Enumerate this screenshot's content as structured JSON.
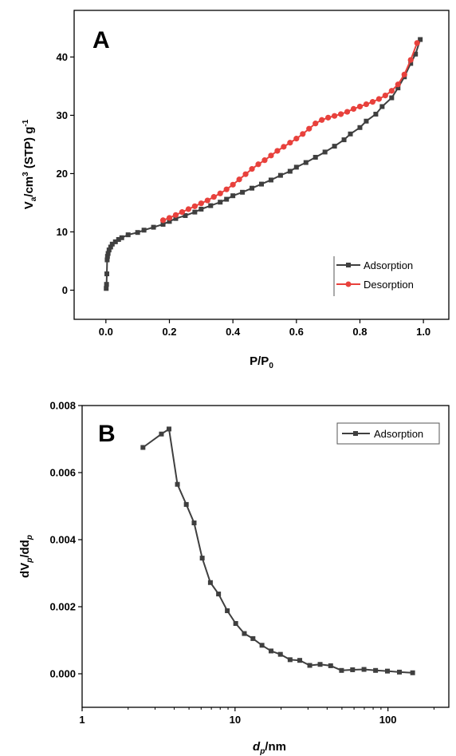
{
  "colors": {
    "adsorption": "#3f3f3f",
    "desorption": "#e8413c",
    "axis": "#000000"
  },
  "chart_data": [
    {
      "type": "line",
      "panel_label": "A",
      "xlabel_main": "P/P",
      "xlabel_sub": "0",
      "ylabel_parts": [
        "V",
        "a",
        "/cm",
        "3",
        " (STP) g",
        "-1"
      ],
      "xlim": [
        -0.1,
        1.08
      ],
      "ylim": [
        -5,
        48
      ],
      "x_ticks": [
        0.0,
        0.2,
        0.4,
        0.6,
        0.8,
        1.0
      ],
      "x_tick_labels": [
        "0.0",
        "0.2",
        "0.4",
        "0.6",
        "0.8",
        "1.0"
      ],
      "y_ticks": [
        0,
        10,
        20,
        30,
        40
      ],
      "y_tick_labels": [
        "0",
        "10",
        "20",
        "30",
        "40"
      ],
      "legend_position": "bottom-right",
      "series": [
        {
          "name": "Adsorption",
          "marker": "square",
          "x": [
            0.001,
            0.002,
            0.003,
            0.004,
            0.005,
            0.007,
            0.01,
            0.015,
            0.02,
            0.03,
            0.04,
            0.05,
            0.07,
            0.1,
            0.12,
            0.15,
            0.18,
            0.2,
            0.22,
            0.25,
            0.28,
            0.3,
            0.33,
            0.36,
            0.38,
            0.4,
            0.43,
            0.46,
            0.49,
            0.52,
            0.55,
            0.58,
            0.6,
            0.63,
            0.66,
            0.69,
            0.72,
            0.75,
            0.77,
            0.8,
            0.82,
            0.85,
            0.87,
            0.9,
            0.92,
            0.94,
            0.96,
            0.975,
            0.99
          ],
          "y": [
            0.3,
            1.0,
            2.8,
            5.2,
            5.8,
            6.3,
            6.9,
            7.4,
            7.9,
            8.3,
            8.7,
            9.0,
            9.5,
            9.9,
            10.3,
            10.8,
            11.3,
            11.8,
            12.3,
            12.8,
            13.4,
            13.9,
            14.5,
            15.1,
            15.6,
            16.2,
            16.8,
            17.5,
            18.2,
            18.9,
            19.7,
            20.4,
            21.1,
            21.9,
            22.8,
            23.7,
            24.7,
            25.8,
            26.8,
            27.9,
            29.0,
            30.2,
            31.5,
            33.0,
            34.7,
            36.6,
            38.9,
            40.5,
            43.0
          ]
        },
        {
          "name": "Desorption",
          "marker": "circle",
          "x": [
            0.98,
            0.96,
            0.94,
            0.92,
            0.9,
            0.88,
            0.86,
            0.84,
            0.82,
            0.8,
            0.78,
            0.76,
            0.74,
            0.72,
            0.7,
            0.68,
            0.66,
            0.64,
            0.62,
            0.6,
            0.58,
            0.56,
            0.54,
            0.52,
            0.5,
            0.48,
            0.46,
            0.44,
            0.42,
            0.4,
            0.38,
            0.36,
            0.34,
            0.32,
            0.3,
            0.28,
            0.26,
            0.24,
            0.22,
            0.2,
            0.18
          ],
          "y": [
            42.4,
            39.5,
            37.0,
            35.3,
            34.2,
            33.4,
            32.8,
            32.3,
            31.9,
            31.5,
            31.1,
            30.6,
            30.2,
            29.9,
            29.6,
            29.2,
            28.6,
            27.7,
            26.8,
            26.0,
            25.3,
            24.6,
            23.9,
            23.1,
            22.3,
            21.6,
            20.8,
            19.9,
            19.0,
            18.1,
            17.3,
            16.6,
            16.0,
            15.4,
            14.9,
            14.4,
            13.9,
            13.4,
            12.9,
            12.4,
            12.0
          ]
        }
      ]
    },
    {
      "type": "line",
      "panel_label": "B",
      "xlabel_parts": [
        "d",
        "p",
        "/nm"
      ],
      "ylabel_parts": [
        "dV",
        "p",
        "/dd",
        "p"
      ],
      "xscale": "log",
      "xlim": [
        1,
        250
      ],
      "ylim": [
        -0.001,
        0.008
      ],
      "x_ticks": [
        1,
        10,
        100
      ],
      "x_tick_labels": [
        "1",
        "10",
        "100"
      ],
      "y_ticks": [
        0,
        0.002,
        0.004,
        0.006,
        0.008
      ],
      "y_tick_labels": [
        "0.000",
        "0.002",
        "0.004",
        "0.006",
        "0.008"
      ],
      "legend_position": "top-right",
      "series": [
        {
          "name": "Adsorption",
          "marker": "square",
          "x": [
            2.5,
            3.3,
            3.7,
            4.2,
            4.8,
            5.4,
            6.1,
            6.9,
            7.8,
            8.9,
            10.1,
            11.5,
            13.1,
            15.0,
            17.2,
            19.8,
            22.9,
            26.5,
            30.8,
            36.0,
            42.2,
            49.7,
            58.7,
            69.7,
            83.0,
            99.2,
            118.8,
            145.0
          ],
          "y": [
            0.00675,
            0.00715,
            0.0073,
            0.00565,
            0.00505,
            0.0045,
            0.00345,
            0.00272,
            0.00238,
            0.00188,
            0.0015,
            0.0012,
            0.00105,
            0.00085,
            0.00068,
            0.00058,
            0.00042,
            0.0004,
            0.00025,
            0.00028,
            0.00024,
            0.0001,
            0.00012,
            0.00013,
            0.0001,
            8e-05,
            5e-05,
            3e-05
          ]
        }
      ]
    }
  ]
}
